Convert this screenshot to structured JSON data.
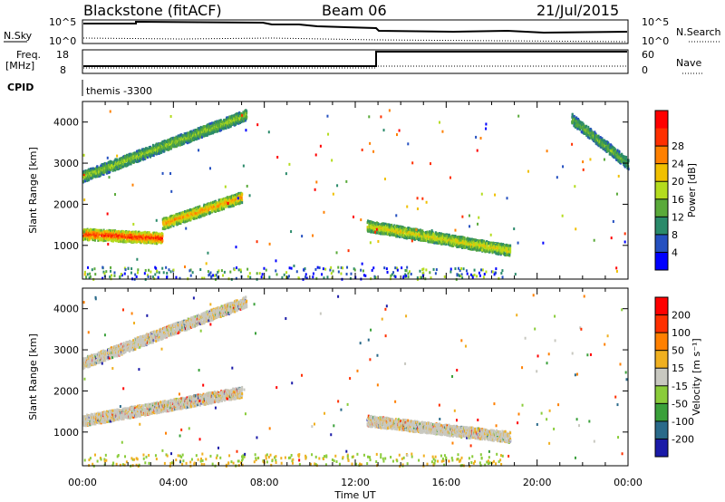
{
  "header": {
    "station": "Blackstone (fitACF)",
    "beam": "Beam 06",
    "date": "21/Jul/2015"
  },
  "top_panels": {
    "nsky_label": "N.Sky",
    "nsky_ticks": [
      "10^5",
      "10^0"
    ],
    "nsearch_label": "N.Search",
    "nsearch_ticks": [
      "10^5",
      "10^0"
    ],
    "freq_label": "Freq.",
    "freq_unit": "[MHz]",
    "freq_ticks": [
      "18",
      "8"
    ],
    "nave_label": "Nave",
    "nave_ticks": [
      "60",
      "0"
    ],
    "cpid_label": "CPID",
    "cpid_value": "themis -3300"
  },
  "chart_data": [
    {
      "type": "heatmap",
      "name": "power",
      "ylabel": "Slant Range [km]",
      "xlabel": "Time UT",
      "xlim": [
        "00:00",
        "00:00"
      ],
      "ylim": [
        180,
        4500
      ],
      "y_ticks": [
        "1000",
        "2000",
        "3000",
        "4000"
      ],
      "x_ticks": [
        "00:00",
        "04:00",
        "08:00",
        "12:00",
        "16:00",
        "20:00",
        "00:00"
      ],
      "colorbar": {
        "label": "Power [dB]",
        "ticks": [
          "4",
          "8",
          "12",
          "16",
          "20",
          "24",
          "28"
        ],
        "colors": [
          "#0000ff",
          "#2550c0",
          "#2a8a6a",
          "#5aaa3a",
          "#b4dc1e",
          "#f0c000",
          "#ff8000",
          "#ff3000",
          "#ff0000"
        ]
      },
      "features": [
        {
          "start_h": 0.0,
          "end_h": 3.5,
          "range_start_km": 1300,
          "range_end_km": 1200,
          "power_db": 28
        },
        {
          "start_h": 3.5,
          "end_h": 7.0,
          "range_start_km": 1550,
          "range_end_km": 2200,
          "power_db": 22
        },
        {
          "start_h": 0.0,
          "end_h": 7.2,
          "range_start_km": 2700,
          "range_end_km": 4200,
          "power_db": 14
        },
        {
          "start_h": 12.5,
          "end_h": 18.8,
          "range_start_km": 1500,
          "range_end_km": 900,
          "power_db": 18
        },
        {
          "start_h": 21.5,
          "end_h": 24.0,
          "range_start_km": 4100,
          "range_end_km": 3000,
          "power_db": 12
        }
      ]
    },
    {
      "type": "heatmap",
      "name": "velocity",
      "ylabel": "Slant Range [km]",
      "xlabel": "Time UT",
      "ylim": [
        180,
        4500
      ],
      "y_ticks": [
        "1000",
        "2000",
        "3000",
        "4000"
      ],
      "x_ticks": [
        "00:00",
        "04:00",
        "08:00",
        "12:00",
        "16:00",
        "20:00",
        "00:00"
      ],
      "colorbar": {
        "label": "Velocity [m s⁻¹]",
        "ticks": [
          "200",
          "100",
          "50",
          "15",
          "-15",
          "-50",
          "-100",
          "-200"
        ],
        "colors": [
          "#1a1aa8",
          "#2a6a8a",
          "#3aa03a",
          "#8acc3a",
          "#c8c8c0",
          "#f0b020",
          "#ff8000",
          "#ff3000",
          "#ff0000"
        ]
      },
      "features": [
        {
          "start_h": 0.0,
          "end_h": 7.0,
          "range_start_km": 1300,
          "range_end_km": 2000,
          "velocity_ms": 0
        },
        {
          "start_h": 0.0,
          "end_h": 7.2,
          "range_start_km": 2700,
          "range_end_km": 4200,
          "velocity_ms": -30
        },
        {
          "start_h": 12.5,
          "end_h": 18.8,
          "range_start_km": 1300,
          "range_end_km": 900,
          "velocity_ms": 0
        }
      ]
    }
  ],
  "colors": {
    "frame": "#000000",
    "ground_scatter": "#c8c8c0"
  }
}
